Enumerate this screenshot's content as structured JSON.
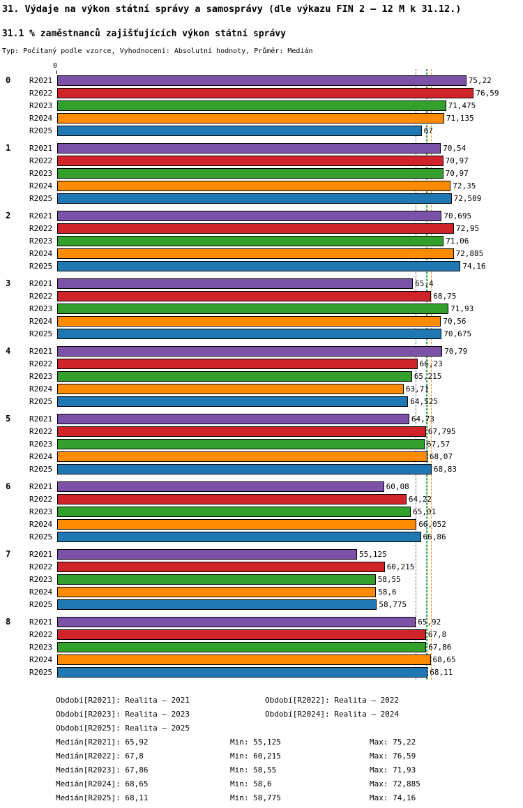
{
  "title": "31. Výdaje na výkon státní správy a samosprávy (dle výkazu FIN 2 – 12 M k 31.12.)",
  "subtitle": "31.1 % zaměstnanců zajišťujících výkon státní správy",
  "meta": "Typ: Počítaný podle vzorce, Vyhodnocení: Absolutní hodnoty, Průměr: Medián",
  "axis": {
    "origin_label": "0"
  },
  "chart_data": {
    "type": "bar",
    "orientation": "horizontal",
    "value_axis_start": 0,
    "series": [
      {
        "key": "R2021",
        "name": "Realita – 2021",
        "color": "#7B52A8",
        "median": 65.92,
        "median_display": "65,92"
      },
      {
        "key": "R2022",
        "name": "Realita – 2022",
        "color": "#D0232A",
        "median": 67.8,
        "median_display": "67,8"
      },
      {
        "key": "R2023",
        "name": "Realita – 2023",
        "color": "#33A02C",
        "median": 67.86,
        "median_display": "67,86"
      },
      {
        "key": "R2024",
        "name": "Realita – 2024",
        "color": "#FF8C00",
        "median": 68.65,
        "median_display": "68,65"
      },
      {
        "key": "R2025",
        "name": "Realita – 2025",
        "color": "#1F77B4",
        "median": 68.11,
        "median_display": "68,11"
      }
    ],
    "groups": [
      {
        "label": "0",
        "values": [
          75.22,
          76.59,
          71.475,
          71.135,
          67
        ],
        "display": [
          "75,22",
          "76,59",
          "71,475",
          "71,135",
          "67"
        ]
      },
      {
        "label": "1",
        "values": [
          70.54,
          70.97,
          70.97,
          72.35,
          72.509
        ],
        "display": [
          "70,54",
          "70,97",
          "70,97",
          "72,35",
          "72,509"
        ]
      },
      {
        "label": "2",
        "values": [
          70.695,
          72.95,
          71.06,
          72.885,
          74.16
        ],
        "display": [
          "70,695",
          "72,95",
          "71,06",
          "72,885",
          "74,16"
        ]
      },
      {
        "label": "3",
        "values": [
          65.4,
          68.75,
          71.93,
          70.56,
          70.675
        ],
        "display": [
          "65,4",
          "68,75",
          "71,93",
          "70,56",
          "70,675"
        ]
      },
      {
        "label": "4",
        "values": [
          70.79,
          66.23,
          65.215,
          63.71,
          64.525
        ],
        "display": [
          "70,79",
          "66,23",
          "65,215",
          "63,71",
          "64,525"
        ]
      },
      {
        "label": "5",
        "values": [
          64.73,
          67.795,
          67.57,
          68.07,
          68.83
        ],
        "display": [
          "64,73",
          "67,795",
          "67,57",
          "68,07",
          "68,83"
        ]
      },
      {
        "label": "6",
        "values": [
          60.08,
          64.22,
          65.01,
          66.052,
          66.86
        ],
        "display": [
          "60,08",
          "64,22",
          "65,01",
          "66,052",
          "66,86"
        ]
      },
      {
        "label": "7",
        "values": [
          55.125,
          60.215,
          58.55,
          58.6,
          58.775
        ],
        "display": [
          "55,125",
          "60,215",
          "58,55",
          "58,6",
          "58,775"
        ]
      },
      {
        "label": "8",
        "values": [
          65.92,
          67.8,
          67.86,
          68.65,
          68.11
        ],
        "display": [
          "65,92",
          "67,8",
          "67,86",
          "68,65",
          "68,11"
        ]
      }
    ]
  },
  "legend": {
    "periods": [
      "Období[R2021]: Realita – 2021",
      "Období[R2022]: Realita – 2022",
      "Období[R2023]: Realita – 2023",
      "Období[R2024]: Realita – 2024",
      "Období[R2025]: Realita – 2025"
    ],
    "stats": [
      {
        "median": "Medián[R2021]: 65,92",
        "min": "Min: 55,125",
        "max": "Max: 75,22"
      },
      {
        "median": "Medián[R2022]: 67,8",
        "min": "Min: 60,215",
        "max": "Max: 76,59"
      },
      {
        "median": "Medián[R2023]: 67,86",
        "min": "Min: 58,55",
        "max": "Max: 71,93"
      },
      {
        "median": "Medián[R2024]: 68,65",
        "min": "Min: 58,6",
        "max": "Max: 72,885"
      },
      {
        "median": "Medián[R2025]: 68,11",
        "min": "Min: 58,775",
        "max": "Max: 74,16"
      }
    ]
  }
}
